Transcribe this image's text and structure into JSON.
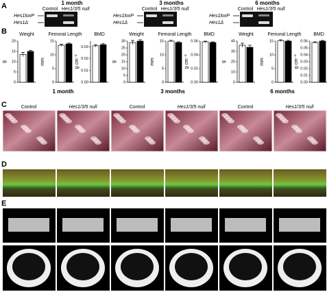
{
  "panels": {
    "A": {
      "letter": "A",
      "times": [
        "1 month",
        "3 months",
        "6 months"
      ],
      "lane_labels": [
        "Control",
        "Hes1/3/5 null"
      ],
      "band_labels": [
        "Hes1loxP",
        "Hes1Δ"
      ]
    },
    "B": {
      "letter": "B",
      "groups": [
        "1 month",
        "3 months",
        "6 months"
      ]
    },
    "C": {
      "letter": "C",
      "labels": [
        "Control",
        "Hes1/3/5 null",
        "Control",
        "Hes1/3/5 null",
        "Control",
        "Hes1/3/5 null"
      ]
    },
    "D": {
      "letter": "D"
    },
    "E": {
      "letter": "E"
    }
  },
  "chart_data": [
    {
      "type": "bar",
      "title": "Weight",
      "y_label": "g",
      "categories": [
        null,
        null
      ],
      "values": [
        13.5,
        15
      ],
      "errors": [
        1,
        0.5
      ],
      "colors": [
        "#ffffff",
        "#000000"
      ],
      "ylim": [
        0,
        20
      ],
      "yticks": [
        0,
        5,
        10,
        15,
        20
      ]
    },
    {
      "type": "bar",
      "title": "Femoral Length",
      "y_label": "mm",
      "categories": [
        null,
        null
      ],
      "values": [
        13.5,
        14
      ],
      "errors": [
        0.4,
        0.3
      ],
      "colors": [
        "#ffffff",
        "#000000"
      ],
      "ylim": [
        0,
        15
      ],
      "yticks": [
        0,
        5,
        10,
        15
      ]
    },
    {
      "type": "bar",
      "title": "BMD",
      "y_label": "g cm⁻²",
      "categories": [
        null,
        null
      ],
      "values": [
        0.031,
        0.032
      ],
      "errors": [
        0.001,
        0.001
      ],
      "colors": [
        "#ffffff",
        "#000000"
      ],
      "ylim": [
        0,
        0.035
      ],
      "yticks": [
        {
          "value": 0,
          "label": "0.00"
        },
        {
          "value": 0.01,
          "label": "0.01"
        },
        {
          "value": 0.02,
          "label": "0.02"
        },
        {
          "value": 0.03,
          "label": "0.03"
        }
      ]
    },
    {
      "type": "bar",
      "title": "Weight",
      "y_label": "g",
      "categories": [
        null,
        null
      ],
      "values": [
        29,
        30
      ],
      "errors": [
        1.5,
        1
      ],
      "colors": [
        "#ffffff",
        "#000000"
      ],
      "ylim": [
        0,
        30
      ],
      "yticks": [
        0,
        5,
        10,
        15,
        20,
        25,
        30
      ]
    },
    {
      "type": "bar",
      "title": "Femoral Length",
      "y_label": "mm",
      "categories": [
        null,
        null
      ],
      "values": [
        15,
        14.5
      ],
      "errors": [
        0.3,
        0.3
      ],
      "colors": [
        "#ffffff",
        "#000000"
      ],
      "ylim": [
        0,
        15
      ],
      "yticks": [
        0,
        5,
        10,
        15
      ]
    },
    {
      "type": "bar",
      "title": "BMD",
      "y_label": "g cm⁻²",
      "categories": [
        null,
        null
      ],
      "values": [
        0.059,
        0.058
      ],
      "errors": [
        0.001,
        0.001
      ],
      "colors": [
        "#ffffff",
        "#000000"
      ],
      "ylim": [
        0,
        0.06
      ],
      "yticks": [
        {
          "value": 0,
          "label": "0.00"
        },
        {
          "value": 0.02,
          "label": "0.02"
        },
        {
          "value": 0.04,
          "label": "0.04"
        },
        {
          "value": 0.06,
          "label": "0.06"
        }
      ]
    },
    {
      "type": "bar",
      "title": "Weight",
      "y_label": "g",
      "categories": [
        null,
        null
      ],
      "values": [
        36,
        34
      ],
      "errors": [
        2,
        2
      ],
      "colors": [
        "#ffffff",
        "#000000"
      ],
      "ylim": [
        0,
        40
      ],
      "yticks": [
        0,
        10,
        20,
        30,
        40
      ]
    },
    {
      "type": "bar",
      "title": "Femoral Length",
      "y_label": "mm",
      "categories": [
        null,
        null
      ],
      "values": [
        15.2,
        15
      ],
      "errors": [
        0.3,
        0.3
      ],
      "colors": [
        "#ffffff",
        "#000000"
      ],
      "ylim": [
        0,
        15
      ],
      "yticks": [
        0,
        5,
        10,
        15
      ]
    },
    {
      "type": "bar",
      "title": "BMD",
      "y_label": "g cm⁻²",
      "categories": [
        null,
        null
      ],
      "values": [
        0.058,
        0.06
      ],
      "errors": [
        0.001,
        0.001
      ],
      "colors": [
        "#ffffff",
        "#000000"
      ],
      "ylim": [
        0,
        0.06
      ],
      "yticks": [
        {
          "value": 0,
          "label": "0.00"
        },
        {
          "value": 0.01,
          "label": "0.01"
        },
        {
          "value": 0.02,
          "label": "0.02"
        },
        {
          "value": 0.03,
          "label": "0.03"
        },
        {
          "value": 0.04,
          "label": "0.04"
        },
        {
          "value": 0.05,
          "label": "0.05"
        },
        {
          "value": 0.06,
          "label": "0.06"
        }
      ]
    }
  ]
}
